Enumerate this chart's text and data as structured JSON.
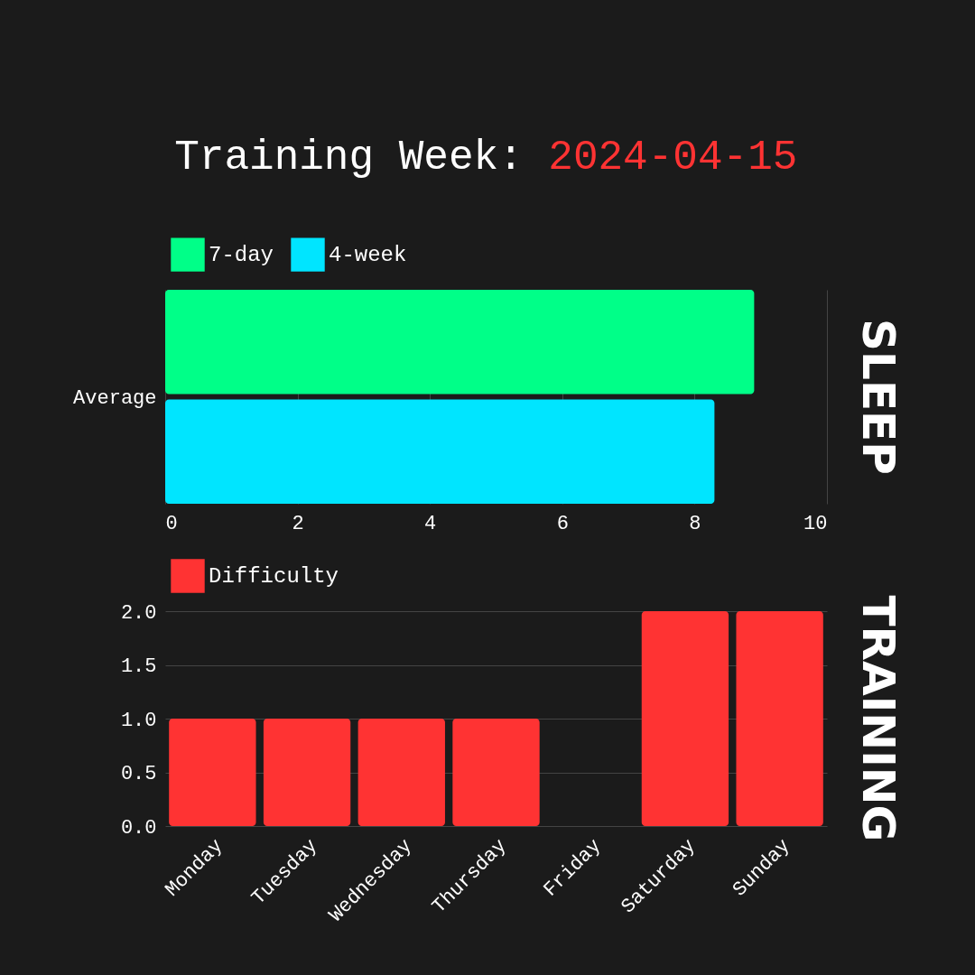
{
  "chart_data": [
    {
      "type": "bar",
      "orientation": "horizontal",
      "title": "Training Week: 2024-04-15",
      "annotations": [
        "SLEEP"
      ],
      "categories": [
        "Average"
      ],
      "series": [
        {
          "name": "7-day",
          "color": "#00ff88",
          "values": [
            8.9
          ]
        },
        {
          "name": "4-week",
          "color": "#00e5ff",
          "values": [
            8.3
          ]
        }
      ],
      "xlim": [
        0,
        10
      ],
      "xticks": [
        0,
        2,
        4,
        6,
        8,
        10
      ],
      "grid": "x",
      "legend": "top"
    },
    {
      "type": "bar",
      "annotations": [
        "TRAINING"
      ],
      "categories": [
        "Monday",
        "Tuesday",
        "Wednesday",
        "Thursday",
        "Friday",
        "Saturday",
        "Sunday"
      ],
      "series": [
        {
          "name": "Difficulty",
          "color": "#ff3333",
          "values": [
            1,
            1,
            1,
            1,
            0,
            2,
            2
          ]
        }
      ],
      "ylim": [
        0,
        2
      ],
      "yticks": [
        {
          "value": 0,
          "label": "0.0"
        },
        0.5,
        {
          "value": 1,
          "label": "1.0"
        },
        1.5,
        {
          "value": 2,
          "label": "2.0"
        }
      ],
      "grid": "y",
      "legend": "top"
    }
  ]
}
